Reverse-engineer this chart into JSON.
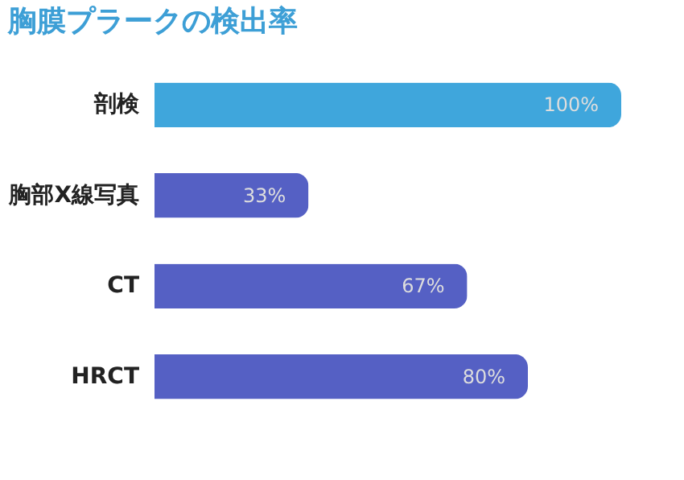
{
  "chart_data": {
    "type": "bar",
    "orientation": "horizontal",
    "title": "胸膜プラークの検出率",
    "categories": [
      "剖検",
      "胸部X線写真",
      "CT",
      "HRCT"
    ],
    "values": [
      100,
      33,
      67,
      80
    ],
    "colors": [
      "#3fa6dc",
      "#5560c4",
      "#5560c4",
      "#5560c4"
    ],
    "value_labels": [
      "100%",
      "33%",
      "67%",
      "80%"
    ]
  }
}
